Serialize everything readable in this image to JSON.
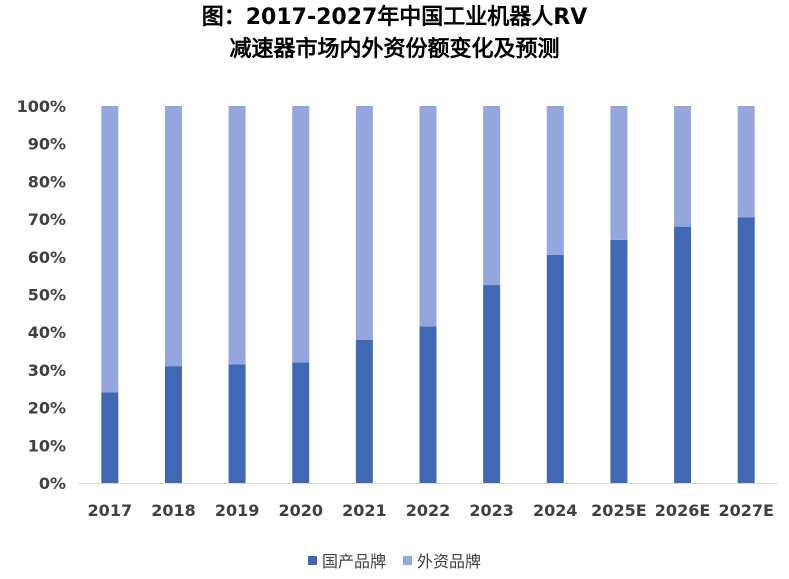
{
  "chart_data": {
    "type": "bar",
    "stacked": true,
    "title": [
      "图：2017-2027年中国工业机器人RV",
      "减速器市场内外资份额变化及预测"
    ],
    "categories": [
      "2017",
      "2018",
      "2019",
      "2020",
      "2021",
      "2022",
      "2023",
      "2024",
      "2025E",
      "2026E",
      "2027E"
    ],
    "series": [
      {
        "name": "国产品牌",
        "color": "#4068B4",
        "values": [
          24,
          31,
          31.5,
          32,
          38,
          41.5,
          52.5,
          60.5,
          64.5,
          68,
          70.5
        ]
      },
      {
        "name": "外资品牌",
        "color": "#94A6DB",
        "values": [
          76,
          69,
          68.5,
          68,
          62,
          58.5,
          47.5,
          39.5,
          35.5,
          32,
          29.5
        ]
      }
    ],
    "yticks": [
      "0%",
      "10%",
      "20%",
      "30%",
      "40%",
      "50%",
      "60%",
      "70%",
      "80%",
      "90%",
      "100%"
    ],
    "ylim": [
      0,
      100
    ],
    "grid": false,
    "legend_position": "bottom"
  }
}
